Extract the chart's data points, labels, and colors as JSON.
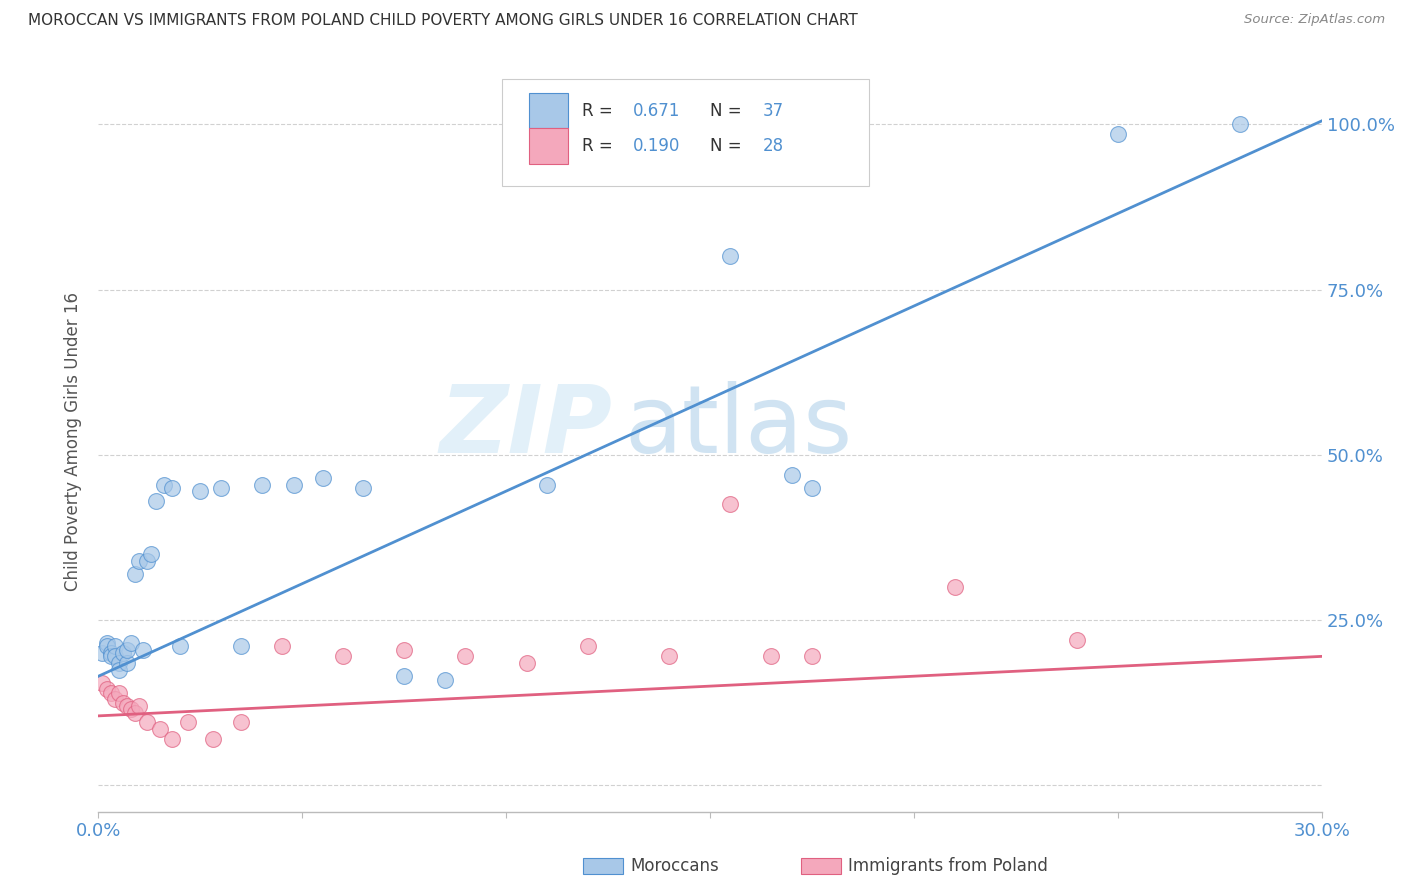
{
  "title": "MOROCCAN VS IMMIGRANTS FROM POLAND CHILD POVERTY AMONG GIRLS UNDER 16 CORRELATION CHART",
  "source": "Source: ZipAtlas.com",
  "ylabel": "Child Poverty Among Girls Under 16",
  "xlim": [
    0.0,
    0.3
  ],
  "ylim": [
    -0.04,
    1.08
  ],
  "moroccan_color": "#a8c8e8",
  "poland_color": "#f4a8bc",
  "line_blue": "#5090d0",
  "line_pink": "#e06080",
  "watermark_zip": "ZIP",
  "watermark_atlas": "atlas",
  "moroccan_x": [
    0.001,
    0.002,
    0.002,
    0.003,
    0.003,
    0.004,
    0.004,
    0.005,
    0.005,
    0.006,
    0.007,
    0.007,
    0.008,
    0.009,
    0.01,
    0.011,
    0.012,
    0.013,
    0.014,
    0.016,
    0.018,
    0.02,
    0.025,
    0.03,
    0.035,
    0.04,
    0.048,
    0.055,
    0.065,
    0.075,
    0.085,
    0.11,
    0.155,
    0.17,
    0.175,
    0.25,
    0.28
  ],
  "moroccan_y": [
    0.2,
    0.215,
    0.21,
    0.2,
    0.195,
    0.21,
    0.195,
    0.185,
    0.175,
    0.2,
    0.185,
    0.205,
    0.215,
    0.32,
    0.34,
    0.205,
    0.34,
    0.35,
    0.43,
    0.455,
    0.45,
    0.21,
    0.445,
    0.45,
    0.21,
    0.455,
    0.455,
    0.465,
    0.45,
    0.165,
    0.16,
    0.455,
    0.8,
    0.47,
    0.45,
    0.985,
    1.0
  ],
  "poland_x": [
    0.001,
    0.002,
    0.003,
    0.004,
    0.005,
    0.006,
    0.007,
    0.008,
    0.009,
    0.01,
    0.012,
    0.015,
    0.018,
    0.022,
    0.028,
    0.035,
    0.045,
    0.06,
    0.075,
    0.09,
    0.105,
    0.12,
    0.14,
    0.155,
    0.165,
    0.175,
    0.21,
    0.24
  ],
  "poland_y": [
    0.155,
    0.145,
    0.14,
    0.13,
    0.14,
    0.125,
    0.12,
    0.115,
    0.11,
    0.12,
    0.095,
    0.085,
    0.07,
    0.095,
    0.07,
    0.095,
    0.21,
    0.195,
    0.205,
    0.195,
    0.185,
    0.21,
    0.195,
    0.425,
    0.195,
    0.195,
    0.3,
    0.22
  ],
  "blue_line_x0": 0.0,
  "blue_line_y0": 0.165,
  "blue_line_x1": 0.3,
  "blue_line_y1": 1.005,
  "pink_line_x0": 0.0,
  "pink_line_y0": 0.105,
  "pink_line_x1": 0.3,
  "pink_line_y1": 0.195
}
